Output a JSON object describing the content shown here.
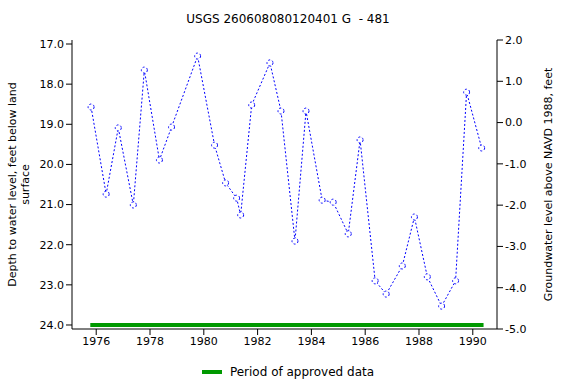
{
  "chart_data": {
    "type": "line",
    "title": "USGS 260608080120401 G  - 481",
    "ylabel": [
      "Depth to water level, feet below land",
      "surface"
    ],
    "y2label": "Groundwater level above NAVD 1988, feet",
    "x": [
      1975.81,
      1976.37,
      1976.82,
      1977.38,
      1977.79,
      1978.35,
      1978.8,
      1979.77,
      1980.4,
      1980.81,
      1981.22,
      1981.37,
      1981.78,
      1982.46,
      1982.87,
      1983.39,
      1983.8,
      1984.4,
      1984.81,
      1985.37,
      1985.81,
      1986.37,
      1986.78,
      1987.38,
      1987.83,
      1988.31,
      1988.84,
      1989.36,
      1989.77,
      1990.33
    ],
    "values": [
      18.57,
      20.74,
      19.09,
      21.01,
      17.65,
      19.89,
      19.07,
      17.3,
      19.52,
      20.46,
      20.84,
      21.26,
      18.52,
      17.47,
      18.67,
      21.91,
      18.67,
      20.89,
      20.94,
      21.73,
      19.39,
      22.9,
      23.23,
      22.53,
      21.31,
      22.8,
      23.53,
      22.9,
      18.2,
      19.59
    ],
    "color": "#0000ff",
    "marker": "circle",
    "line_style": "dotted",
    "approved_period": {
      "name": "Period of approved data",
      "x": [
        1975.78,
        1990.4
      ],
      "values": [
        24.0,
        24.0
      ],
      "color": "#009900"
    },
    "xlim": [
      1975.1,
      1990.9
    ],
    "xticks": [
      1976,
      1978,
      1980,
      1982,
      1984,
      1986,
      1988,
      1990
    ],
    "ylim": [
      16.9,
      24.1
    ],
    "yticks": [
      {
        "value": 17,
        "label": "17.0"
      },
      {
        "value": 18,
        "label": "18.0"
      },
      {
        "value": 19,
        "label": "19.0"
      },
      {
        "value": 20,
        "label": "20.0"
      },
      {
        "value": 21,
        "label": "21.0"
      },
      {
        "value": 22,
        "label": "22.0"
      },
      {
        "value": 23,
        "label": "23.0"
      },
      {
        "value": 24,
        "label": "24.0"
      }
    ],
    "y2lim": [
      -5.0,
      2.0
    ],
    "y2ticks": [
      {
        "value": 2,
        "label": "2.0"
      },
      {
        "value": 1,
        "label": "1.0"
      },
      {
        "value": 0,
        "label": "0.0"
      },
      {
        "value": -1,
        "label": "-1.0"
      },
      {
        "value": -2,
        "label": "-2.0"
      },
      {
        "value": -3,
        "label": "-3.0"
      },
      {
        "value": -4,
        "label": "-4.0"
      },
      {
        "value": -5,
        "label": "-5.0"
      }
    ],
    "grid": false,
    "legend": "bottom"
  }
}
